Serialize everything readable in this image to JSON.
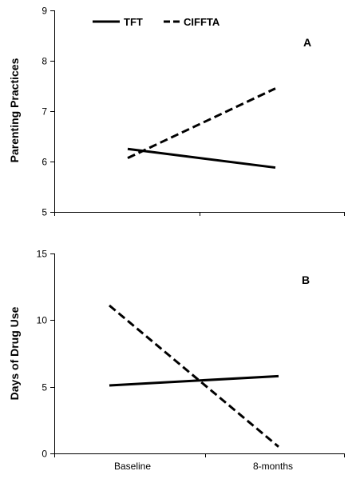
{
  "legend": [
    {
      "name": "TFT",
      "dash": "solid"
    },
    {
      "name": "CIFFTA",
      "dash": "dashed"
    }
  ],
  "chart_data": [
    {
      "type": "line",
      "panel_label": "A",
      "ylabel": "Parenting Practices",
      "xlabel": "",
      "categories": [
        "Baseline",
        "8-months"
      ],
      "ylim": [
        5,
        9
      ],
      "yticks": [
        5,
        6,
        7,
        8,
        9
      ],
      "grid": false,
      "show_x_tick_labels": false,
      "series": [
        {
          "name": "TFT",
          "values": [
            6.25,
            5.88
          ],
          "color": "#000000",
          "dash": "solid"
        },
        {
          "name": "CIFFTA",
          "values": [
            6.07,
            7.45
          ],
          "color": "#000000",
          "dash": "dashed"
        }
      ]
    },
    {
      "type": "line",
      "panel_label": "B",
      "ylabel": "Days of Drug Use",
      "xlabel": "",
      "categories": [
        "Baseline",
        "8-months"
      ],
      "ylim": [
        0,
        15
      ],
      "yticks": [
        0,
        5,
        10,
        15
      ],
      "grid": false,
      "show_x_tick_labels": true,
      "series": [
        {
          "name": "TFT",
          "values": [
            5.1,
            5.8
          ],
          "color": "#000000",
          "dash": "solid"
        },
        {
          "name": "CIFFTA",
          "values": [
            11.1,
            0.5
          ],
          "color": "#000000",
          "dash": "dashed"
        }
      ]
    }
  ]
}
